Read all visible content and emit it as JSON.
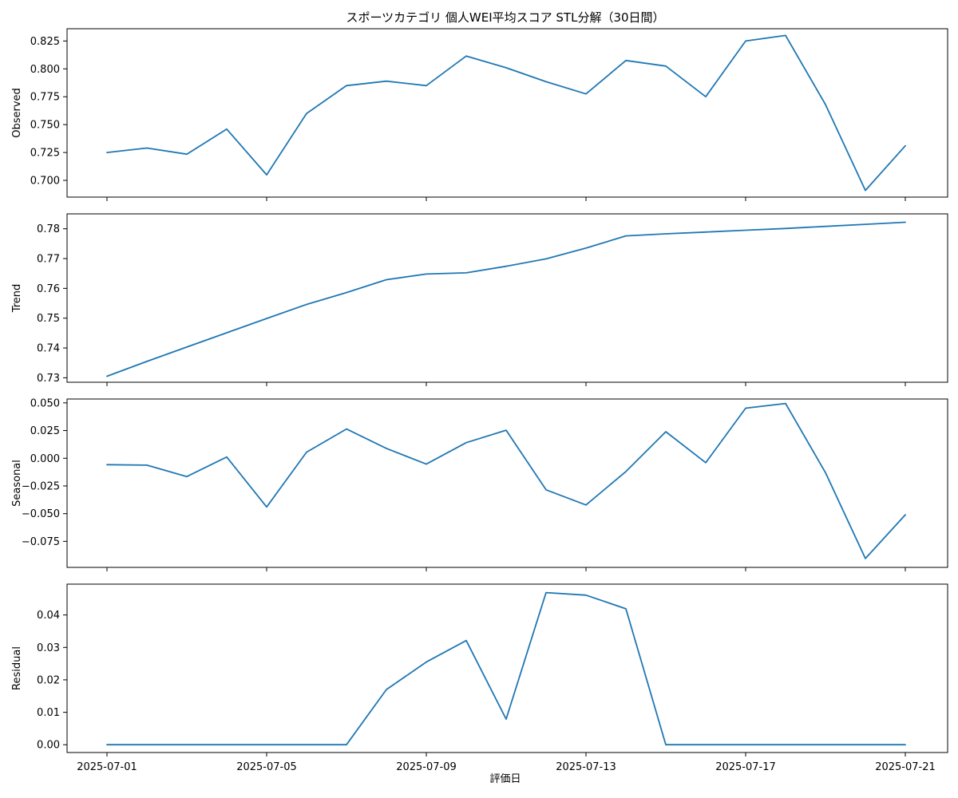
{
  "chart_data": {
    "type": "line",
    "title": "スポーツカテゴリ 個人WEI平均スコア STL分解（30日間）",
    "xlabel": "評価日",
    "line_color": "#1f77b4",
    "x": [
      "2025-07-01",
      "2025-07-02",
      "2025-07-03",
      "2025-07-04",
      "2025-07-05",
      "2025-07-06",
      "2025-07-07",
      "2025-07-08",
      "2025-07-09",
      "2025-07-10",
      "2025-07-11",
      "2025-07-12",
      "2025-07-13",
      "2025-07-14",
      "2025-07-15",
      "2025-07-16",
      "2025-07-17",
      "2025-07-18",
      "2025-07-19",
      "2025-07-20",
      "2025-07-21"
    ],
    "x_ticks": [
      "2025-07-01",
      "2025-07-05",
      "2025-07-09",
      "2025-07-13",
      "2025-07-17",
      "2025-07-21"
    ],
    "panels": [
      {
        "name": "observed",
        "ylabel": "Observed",
        "ylim": [
          0.685,
          0.836
        ],
        "yticks": [
          "0.700",
          "0.725",
          "0.750",
          "0.775",
          "0.800",
          "0.825"
        ],
        "values": [
          0.725,
          0.729,
          0.7235,
          0.746,
          0.705,
          0.76,
          0.785,
          0.789,
          0.785,
          0.8115,
          0.801,
          0.7885,
          0.7775,
          0.8075,
          0.8025,
          0.775,
          0.825,
          0.83,
          0.768,
          0.691,
          0.731
        ]
      },
      {
        "name": "trend",
        "ylabel": "Trend",
        "ylim": [
          0.7285,
          0.785
        ],
        "yticks": [
          "0.73",
          "0.74",
          "0.75",
          "0.76",
          "0.77",
          "0.78"
        ],
        "values": [
          0.7305,
          0.7355,
          0.7403,
          0.7451,
          0.7499,
          0.7546,
          0.7586,
          0.7629,
          0.7648,
          0.7652,
          0.7674,
          0.7699,
          0.7735,
          0.7776,
          0.7783,
          0.7789,
          0.7795,
          0.7801,
          0.7808,
          0.7815,
          0.7822
        ]
      },
      {
        "name": "seasonal",
        "ylabel": "Seasonal",
        "ylim": [
          -0.0985,
          0.0535
        ],
        "yticks": [
          "−0.075",
          "−0.050",
          "−0.025",
          "0.000",
          "0.025",
          "0.050"
        ],
        "values": [
          -0.0058,
          -0.0062,
          -0.0165,
          0.0011,
          -0.044,
          0.0055,
          0.0264,
          0.0089,
          -0.0053,
          0.0141,
          0.0253,
          -0.0285,
          -0.0422,
          -0.012,
          0.024,
          -0.004,
          0.0452,
          0.0495,
          -0.013,
          -0.0905,
          -0.051
        ]
      },
      {
        "name": "residual",
        "ylabel": "Residual",
        "ylim": [
          -0.0024,
          0.0495
        ],
        "yticks": [
          "0.00",
          "0.01",
          "0.02",
          "0.03",
          "0.04"
        ],
        "values": [
          0,
          0,
          0,
          0,
          0,
          0,
          0,
          0.017,
          0.0255,
          0.0321,
          0.0079,
          0.0469,
          0.0461,
          0.0419,
          0,
          0,
          0,
          0,
          0,
          0,
          0
        ]
      }
    ]
  }
}
